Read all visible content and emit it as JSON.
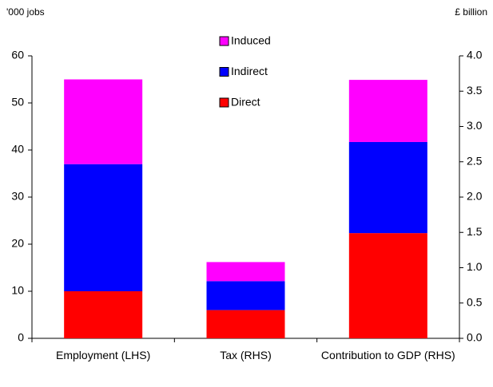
{
  "chart_data": {
    "type": "stacked_bar",
    "ylabel": "'000 jobs",
    "y2label": "£ billion",
    "categories": [
      "Employment (LHS)",
      "Tax (RHS)",
      "Contribution to GDP (RHS)"
    ],
    "category_axes": [
      "y",
      "y2",
      "y2"
    ],
    "series": [
      {
        "name": "Direct",
        "color": "#ff0000",
        "values": [
          10,
          0.4,
          1.49
        ]
      },
      {
        "name": "Indirect",
        "color": "#0000ff",
        "values": [
          27,
          0.41,
          1.29
        ]
      },
      {
        "name": "Induced",
        "color": "#ff00ff",
        "values": [
          18,
          0.27,
          0.88
        ]
      }
    ],
    "ylim": [
      0,
      60
    ],
    "yticks": [
      0,
      10,
      20,
      30,
      40,
      50,
      60
    ],
    "y2lim": [
      0,
      4
    ],
    "y2ticks": [
      {
        "value": 0,
        "label": "0.0"
      },
      0.5,
      {
        "value": 1,
        "label": "1.0"
      },
      1.5,
      {
        "value": 2,
        "label": "2.0"
      },
      2.5,
      {
        "value": 3,
        "label": "3.0"
      },
      3.5,
      {
        "value": 4,
        "label": "4.0"
      }
    ],
    "grid": false,
    "legend": "top"
  }
}
